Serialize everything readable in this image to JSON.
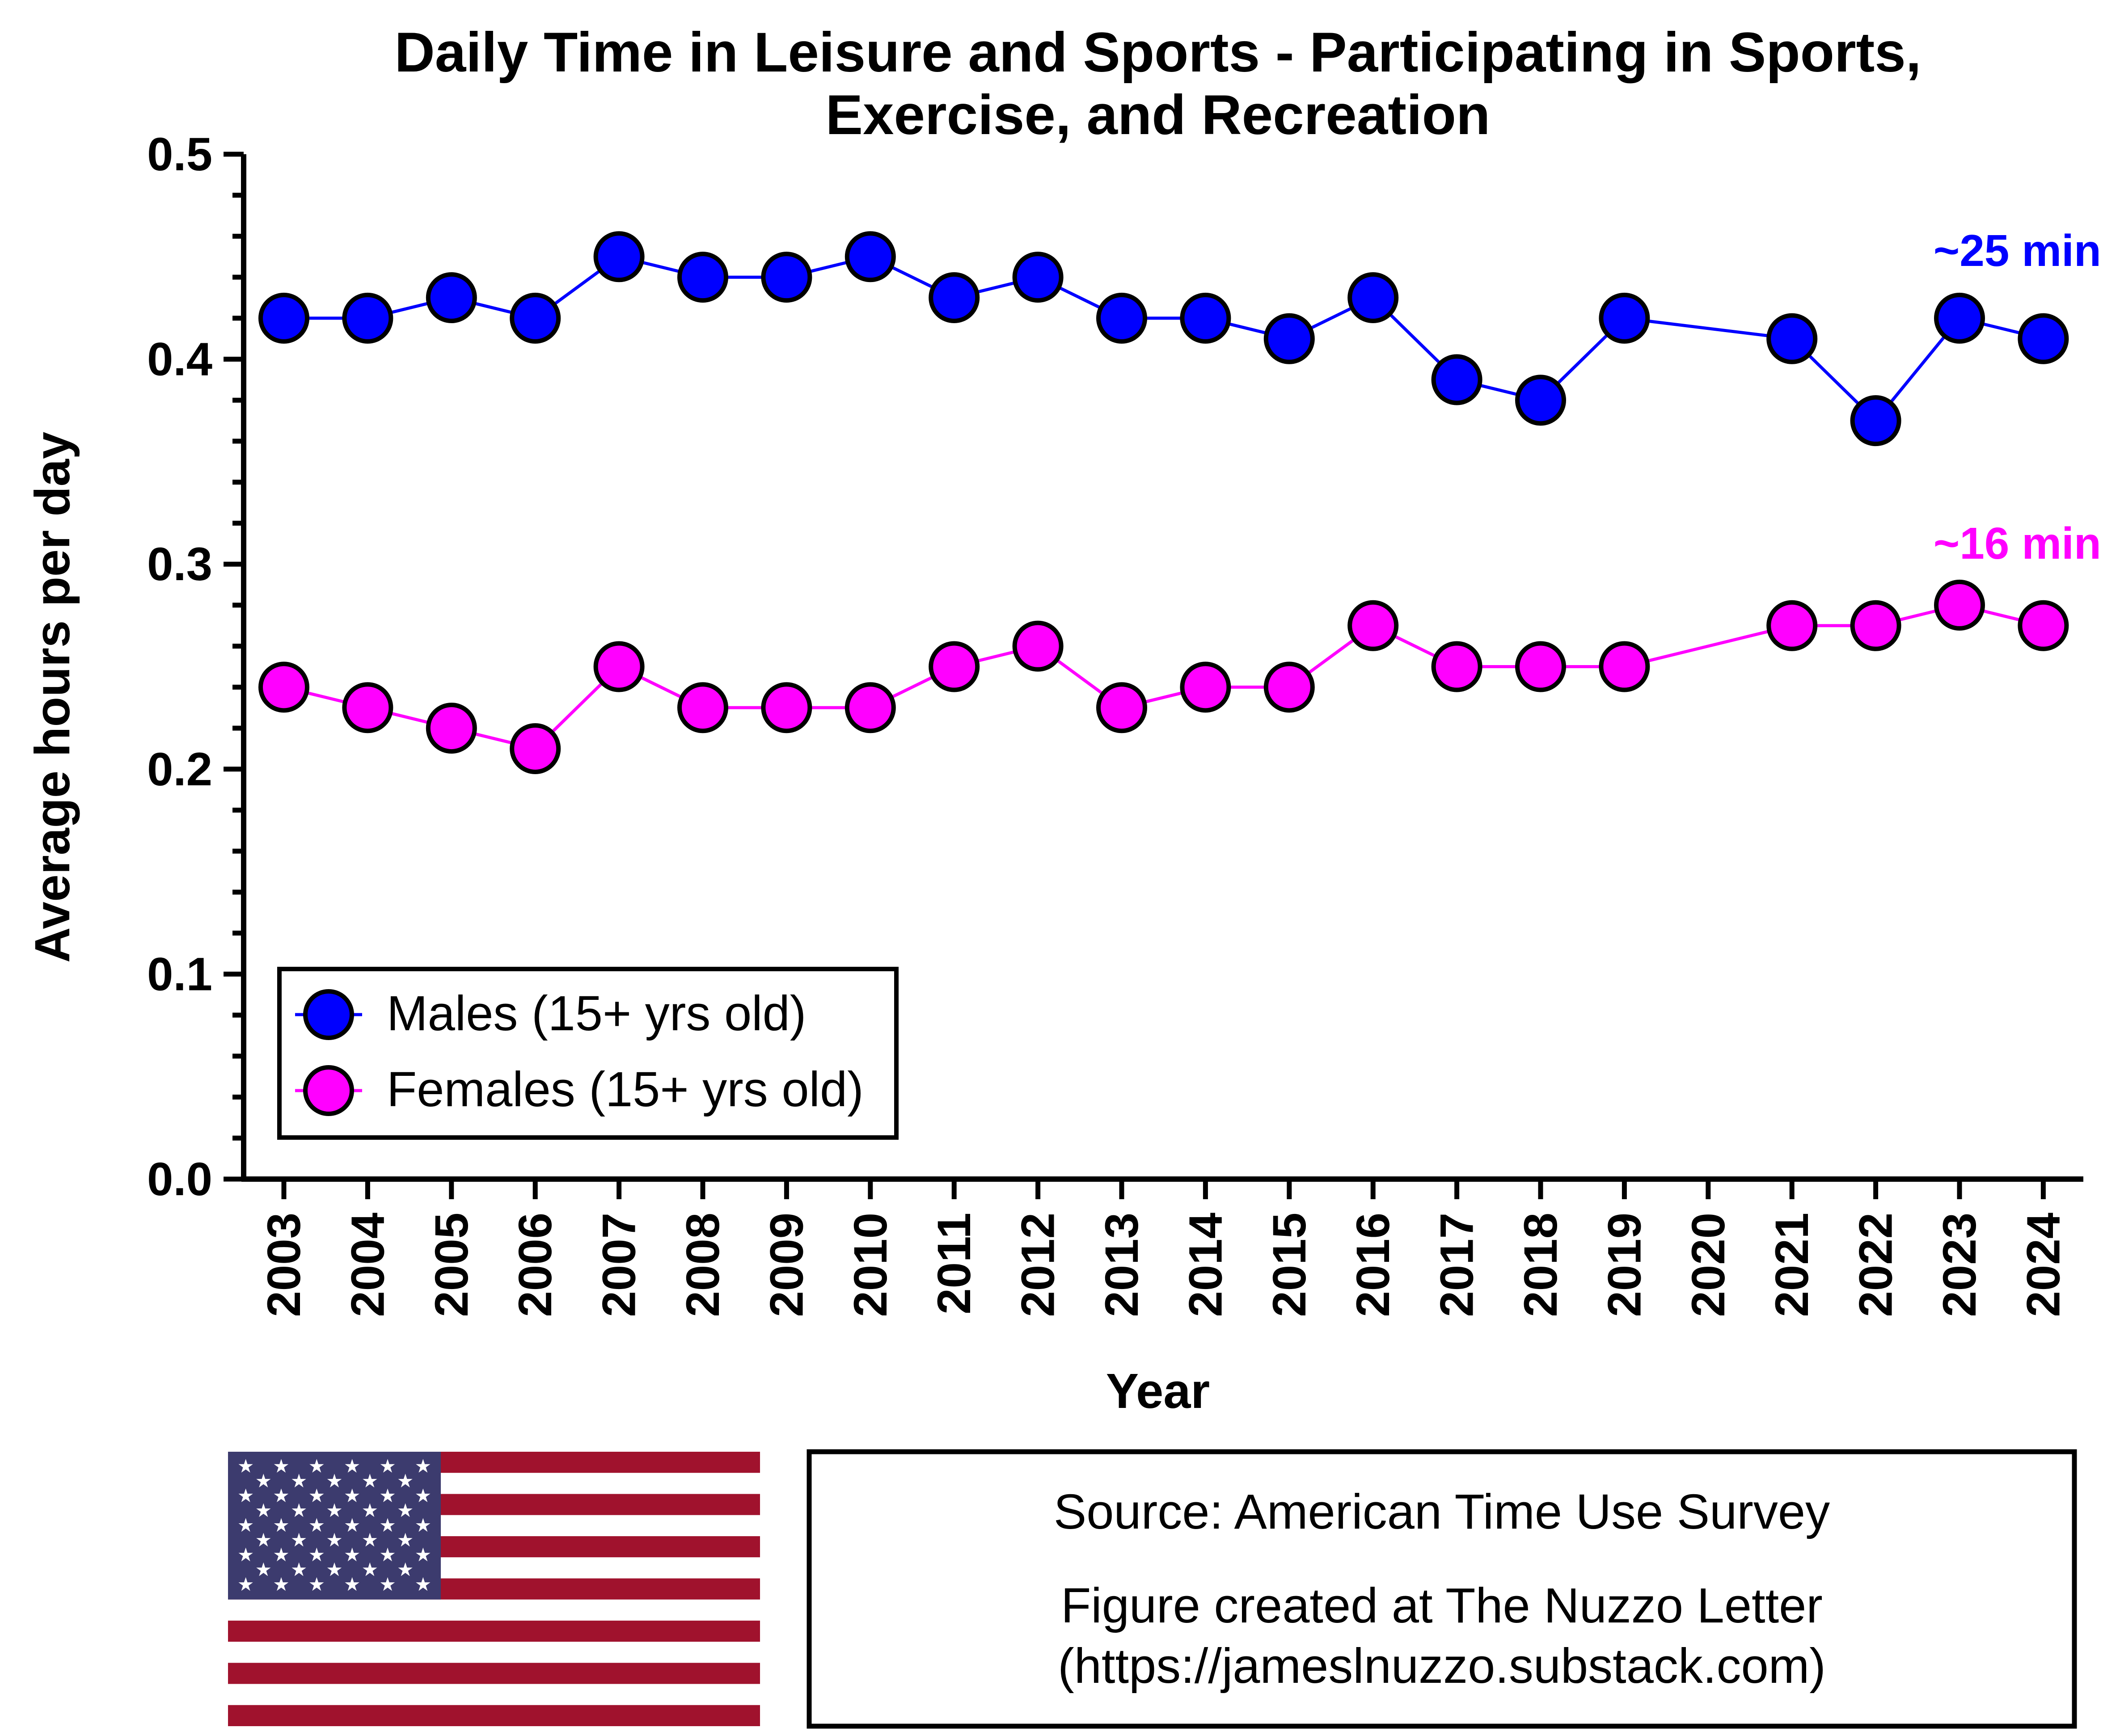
{
  "chart_data": {
    "type": "line",
    "title": "Daily Time in Leisure and Sports - Participating in Sports, Exercise, and Recreation",
    "title_lines": [
      "Daily Time in Leisure and Sports - Participating in Sports,",
      "Exercise, and Recreation"
    ],
    "xlabel": "Year",
    "ylabel": "Average hours per day",
    "ylim": [
      0,
      0.5
    ],
    "y_ticks": [
      "0.0",
      "0.1",
      "0.2",
      "0.3",
      "0.4",
      "0.5"
    ],
    "x_ticks": [
      "2003",
      "2004",
      "2005",
      "2006",
      "2007",
      "2008",
      "2009",
      "2010",
      "2011",
      "2012",
      "2013",
      "2014",
      "2015",
      "2016",
      "2017",
      "2018",
      "2019",
      "2020",
      "2021",
      "2022",
      "2023",
      "2024"
    ],
    "grid": false,
    "legend_placement": "bottom-left",
    "series": [
      {
        "name": "Males (15+ yrs old)",
        "color": "#0000ff",
        "end_label": "~25 min",
        "points": [
          [
            2003,
            0.42
          ],
          [
            2004,
            0.42
          ],
          [
            2005,
            0.43
          ],
          [
            2006,
            0.42
          ],
          [
            2007,
            0.45
          ],
          [
            2008,
            0.44
          ],
          [
            2009,
            0.44
          ],
          [
            2010,
            0.45
          ],
          [
            2011,
            0.43
          ],
          [
            2012,
            0.44
          ],
          [
            2013,
            0.42
          ],
          [
            2014,
            0.42
          ],
          [
            2015,
            0.41
          ],
          [
            2016,
            0.43
          ],
          [
            2017,
            0.39
          ],
          [
            2018,
            0.38
          ],
          [
            2019,
            0.42
          ],
          [
            2021,
            0.41
          ],
          [
            2022,
            0.37
          ],
          [
            2023,
            0.42
          ],
          [
            2024,
            0.41
          ]
        ]
      },
      {
        "name": "Females (15+ yrs old)",
        "color": "#ff00ff",
        "end_label": "~16 min",
        "points": [
          [
            2003,
            0.24
          ],
          [
            2004,
            0.23
          ],
          [
            2005,
            0.22
          ],
          [
            2006,
            0.21
          ],
          [
            2007,
            0.25
          ],
          [
            2008,
            0.23
          ],
          [
            2009,
            0.23
          ],
          [
            2010,
            0.23
          ],
          [
            2011,
            0.25
          ],
          [
            2012,
            0.26
          ],
          [
            2013,
            0.23
          ],
          [
            2014,
            0.24
          ],
          [
            2015,
            0.24
          ],
          [
            2016,
            0.27
          ],
          [
            2017,
            0.25
          ],
          [
            2018,
            0.25
          ],
          [
            2019,
            0.25
          ],
          [
            2021,
            0.27
          ],
          [
            2022,
            0.27
          ],
          [
            2023,
            0.28
          ],
          [
            2024,
            0.27
          ]
        ]
      }
    ]
  },
  "flag": {
    "icon": "us-flag-icon",
    "blue": "#3c3b6e",
    "red": "#a0122d",
    "white": "#ffffff"
  },
  "source_box": {
    "line1": "Source: American Time Use Survey",
    "line2": "Figure created at The Nuzzo Letter",
    "line3": "(https://jameslnuzzo.substack.com)"
  }
}
